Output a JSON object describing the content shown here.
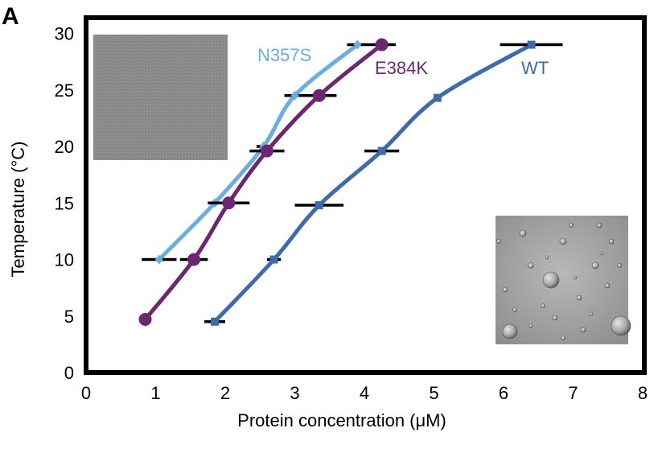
{
  "panel_label": "A",
  "chart_data": {
    "type": "line",
    "xlabel": "Protein concentration (μM)",
    "ylabel": "Temperature (°C)",
    "xlim": [
      0,
      8
    ],
    "ylim": [
      0,
      30
    ],
    "x_ticks": [
      "0",
      "1",
      "2",
      "3",
      "4",
      "5",
      "6",
      "7",
      "8"
    ],
    "y_ticks": [
      "0",
      "5",
      "10",
      "15",
      "20",
      "25",
      "30"
    ],
    "grid": false,
    "insets": [
      {
        "description": "uniform gray micrograph",
        "position": "top-left"
      },
      {
        "description": "droplet micrograph",
        "position": "bottom-right"
      }
    ],
    "series": [
      {
        "name": "N357S",
        "color": "#6aaee0",
        "marker": "diamond",
        "points": [
          {
            "x": 1.05,
            "y": 10,
            "xerr": 0.25
          },
          {
            "x": 1.85,
            "y": 15,
            "xerr": 0.1
          },
          {
            "x": 2.55,
            "y": 20,
            "xerr": 0.1
          },
          {
            "x": 3.0,
            "y": 24.5,
            "xerr": 0.15
          },
          {
            "x": 3.9,
            "y": 29,
            "xerr": 0.15
          }
        ]
      },
      {
        "name": "E384K",
        "color": "#6b2770",
        "marker": "circle",
        "points": [
          {
            "x": 0.85,
            "y": 4.7,
            "xerr": 0.05
          },
          {
            "x": 1.55,
            "y": 10,
            "xerr": 0.2
          },
          {
            "x": 2.05,
            "y": 15,
            "xerr": 0.3
          },
          {
            "x": 2.6,
            "y": 19.6,
            "xerr": 0.25
          },
          {
            "x": 3.35,
            "y": 24.5,
            "xerr": 0.25
          },
          {
            "x": 4.25,
            "y": 29,
            "xerr": 0.2
          }
        ]
      },
      {
        "name": "WT",
        "color": "#3f6bab",
        "marker": "square",
        "points": [
          {
            "x": 1.85,
            "y": 4.5,
            "xerr": 0.15
          },
          {
            "x": 2.7,
            "y": 10,
            "xerr": 0.1
          },
          {
            "x": 3.35,
            "y": 14.8,
            "xerr": 0.35
          },
          {
            "x": 4.25,
            "y": 19.6,
            "xerr": 0.25
          },
          {
            "x": 5.05,
            "y": 24.3,
            "xerr": 0.05
          },
          {
            "x": 6.4,
            "y": 29,
            "xerr": 0.45
          }
        ]
      }
    ]
  }
}
